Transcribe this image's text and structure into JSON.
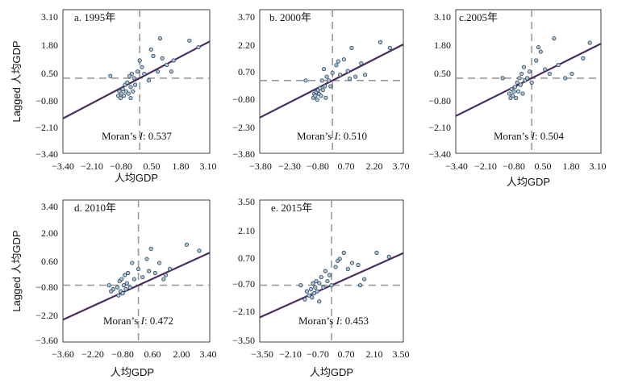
{
  "chart_data": [
    {
      "type": "scatter",
      "title": "a. 1995年",
      "xlabel": "人均GDP",
      "ylabel": "Lagged 人均GDP",
      "xlim": [
        -3.4,
        3.1
      ],
      "ylim": [
        -3.4,
        3.1
      ],
      "xticks": [
        "−3.40",
        "−2.10",
        "−0.80",
        "0.50",
        "1.80",
        "3.10"
      ],
      "yticks": [
        "3.10",
        "1.80",
        "0.50",
        "−0.80",
        "−2.10",
        "−3.40"
      ],
      "stat_label": "Moran’s ",
      "stat_symbol": "I",
      "stat_value": ": 0.537",
      "slope": 0.537,
      "crosshair": [
        0,
        0
      ],
      "x": [
        -0.95,
        -0.9,
        -0.85,
        -0.8,
        -0.75,
        -0.7,
        -0.65,
        -0.6,
        -0.55,
        -0.5,
        -0.45,
        -0.4,
        -0.35,
        -0.3,
        -0.25,
        -0.2,
        -0.1,
        0.0,
        0.1,
        0.2,
        0.4,
        0.6,
        0.8,
        1.0,
        1.2,
        1.5,
        0.9,
        2.2,
        2.6,
        -1.3,
        -0.4,
        1.4,
        0.5
      ],
      "y": [
        -0.8,
        -0.6,
        -0.9,
        -0.7,
        -0.5,
        -0.8,
        -0.3,
        -0.6,
        -0.2,
        -0.7,
        0.1,
        -0.4,
        0.2,
        -0.6,
        0.0,
        -0.3,
        0.3,
        0.8,
        0.5,
        0.2,
        -0.1,
        1.0,
        0.3,
        0.9,
        0.6,
        0.8,
        1.8,
        1.7,
        1.4,
        0.1,
        -0.9,
        0.3,
        1.3
      ]
    },
    {
      "type": "scatter",
      "title": "b. 2000年",
      "xlabel": "",
      "ylabel": "",
      "xlim": [
        -3.8,
        3.7
      ],
      "ylim": [
        -3.8,
        3.7
      ],
      "xticks": [
        "−3.80",
        "−2.30",
        "−0.80",
        "0.70",
        "2.20",
        "3.70"
      ],
      "yticks": [
        "3.70",
        "2.20",
        "0.70",
        "−0.80",
        "−2.30",
        "−3.80"
      ],
      "stat_label": "Moran’s ",
      "stat_symbol": "I",
      "stat_value": ": 0.510",
      "slope": 0.51,
      "crosshair": [
        0,
        0
      ],
      "x": [
        -1.0,
        -0.95,
        -0.9,
        -0.85,
        -0.8,
        -0.75,
        -0.7,
        -0.65,
        -0.6,
        -0.55,
        -0.5,
        -0.45,
        -0.4,
        -0.35,
        -0.3,
        -0.2,
        -0.1,
        0.0,
        0.2,
        0.4,
        0.6,
        0.8,
        1.0,
        1.2,
        1.5,
        0.9,
        2.5,
        3.0,
        -1.4,
        1.7,
        0.3
      ],
      "y": [
        -0.9,
        -0.7,
        -0.8,
        -0.6,
        -1.0,
        -0.5,
        -0.7,
        -0.4,
        -0.8,
        0.0,
        -0.5,
        0.6,
        -0.3,
        -0.9,
        0.2,
        0.0,
        -0.3,
        0.4,
        0.8,
        0.3,
        1.1,
        0.5,
        1.7,
        0.2,
        0.9,
        0.1,
        2.0,
        1.7,
        0.0,
        0.3,
        1.0
      ]
    },
    {
      "type": "scatter",
      "title": "c.2005年",
      "xlabel": "人均GDP",
      "ylabel": "",
      "xlim": [
        -3.4,
        3.1
      ],
      "ylim": [
        -3.4,
        3.1
      ],
      "xticks": [
        "−3.40",
        "−2.10",
        "−0.80",
        "0.50",
        "1.80",
        "3.10"
      ],
      "yticks": [
        "3.10",
        "1.80",
        "0.50",
        "−0.80",
        "−2.10",
        "−3.40"
      ],
      "stat_label": "Moran’s ",
      "stat_symbol": "I",
      "stat_value": ": 0.504",
      "slope": 0.504,
      "crosshair": [
        0,
        0
      ],
      "x": [
        -1.0,
        -0.95,
        -0.9,
        -0.85,
        -0.8,
        -0.75,
        -0.7,
        -0.65,
        -0.6,
        -0.55,
        -0.5,
        -0.45,
        -0.4,
        -0.35,
        -0.3,
        -0.2,
        -0.1,
        0.0,
        0.2,
        0.4,
        0.6,
        0.8,
        1.0,
        1.2,
        1.5,
        2.3,
        2.6,
        -1.3,
        1.8,
        0.3
      ],
      "y": [
        -0.7,
        -0.9,
        -0.5,
        -0.8,
        -0.6,
        -0.4,
        -0.9,
        -0.2,
        -0.6,
        0.0,
        -0.3,
        0.2,
        -0.7,
        0.5,
        -0.1,
        0.0,
        0.3,
        -0.2,
        0.8,
        1.2,
        0.4,
        0.2,
        1.8,
        0.6,
        0.0,
        0.9,
        1.6,
        0.0,
        0.2,
        1.4
      ]
    },
    {
      "type": "scatter",
      "title": "d. 2010年",
      "xlabel": "人均GDP",
      "ylabel": "Lagged 人均GDP",
      "xlim": [
        -3.6,
        3.4
      ],
      "ylim": [
        -3.6,
        3.4
      ],
      "xticks": [
        "−3.60",
        "−2.20",
        "−0.80",
        "0.60",
        "2.00",
        "3.40"
      ],
      "yticks": [
        "3.40",
        "2.00",
        "0.60",
        "−0.80",
        "−2.20",
        "−3.60"
      ],
      "stat_label": "Moran’s ",
      "stat_symbol": "I",
      "stat_value": ": 0.472",
      "slope": 0.472,
      "crosshair": [
        0,
        -0.8
      ],
      "x": [
        -1.4,
        -1.2,
        -1.0,
        -0.95,
        -0.9,
        -0.85,
        -0.8,
        -0.75,
        -0.7,
        -0.65,
        -0.6,
        -0.55,
        -0.5,
        -0.4,
        -0.3,
        -0.2,
        0.0,
        0.2,
        0.4,
        0.6,
        0.8,
        1.0,
        1.2,
        1.5,
        2.3,
        2.9,
        -1.3,
        1.3,
        0.5
      ],
      "y": [
        -0.8,
        -1.0,
        -0.9,
        -1.3,
        -0.6,
        -1.1,
        -0.5,
        -1.2,
        -0.8,
        -0.3,
        -1.0,
        -0.7,
        -0.2,
        -0.9,
        0.3,
        -0.5,
        0.0,
        -0.4,
        0.5,
        1.0,
        -0.2,
        0.3,
        -0.5,
        0.0,
        1.2,
        0.9,
        -1.1,
        -0.3,
        -0.1
      ]
    },
    {
      "type": "scatter",
      "title": "e. 2015年",
      "xlabel": "人均GDP",
      "ylabel": "",
      "xlim": [
        -3.5,
        3.5
      ],
      "ylim": [
        -3.5,
        3.5
      ],
      "xticks": [
        "−3.50",
        "−2.10",
        "−0.70",
        "0.70",
        "2.10",
        "3.50"
      ],
      "yticks": [
        "3.50",
        "2.10",
        "0.70",
        "−0.70",
        "−2.10",
        "−3.50"
      ],
      "stat_label": "Moran’s ",
      "stat_symbol": "I",
      "stat_value": ": 0.453",
      "slope": 0.453,
      "crosshair": [
        0,
        -0.7
      ],
      "x": [
        -1.5,
        -1.3,
        -1.2,
        -1.1,
        -1.0,
        -0.95,
        -0.9,
        -0.85,
        -0.8,
        -0.75,
        -0.7,
        -0.6,
        -0.5,
        -0.4,
        -0.3,
        -0.2,
        -0.1,
        0.0,
        0.2,
        0.4,
        0.6,
        0.8,
        1.0,
        1.3,
        1.6,
        2.2,
        2.8,
        1.4,
        -0.6,
        0.3
      ],
      "y": [
        -0.7,
        -1.4,
        -1.0,
        -1.2,
        -0.9,
        -1.3,
        -0.6,
        -1.1,
        -0.8,
        -0.5,
        -1.0,
        -0.6,
        -0.3,
        -0.8,
        0.0,
        -0.5,
        -0.2,
        -0.7,
        0.2,
        0.6,
        0.9,
        0.1,
        0.4,
        0.3,
        -0.4,
        0.9,
        0.7,
        -0.7,
        -1.5,
        0.5
      ]
    }
  ]
}
